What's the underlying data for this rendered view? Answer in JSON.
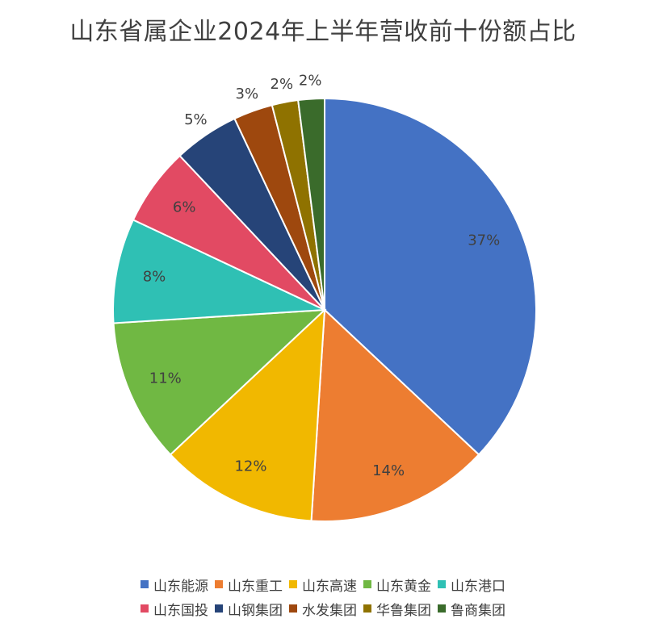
{
  "chart_data": {
    "type": "pie",
    "title": "山东省属企业2024年上半年营收前十份额占比",
    "slices": [
      {
        "name": "山东能源",
        "value": 37,
        "label": "37%",
        "color": "#4472c4"
      },
      {
        "name": "山东重工",
        "value": 14,
        "label": "14%",
        "color": "#ed7d31"
      },
      {
        "name": "山东高速",
        "value": 12,
        "label": "12%",
        "color": "#f1b800"
      },
      {
        "name": "山东黄金",
        "value": 11,
        "label": "11%",
        "color": "#70b843"
      },
      {
        "name": "山东港口",
        "value": 8,
        "label": "8%",
        "color": "#2fc0b4"
      },
      {
        "name": "山东国投",
        "value": 6,
        "label": "6%",
        "color": "#e24a63"
      },
      {
        "name": "山钢集团",
        "value": 5,
        "label": "5%",
        "color": "#264478"
      },
      {
        "name": "水发集团",
        "value": 3,
        "label": "3%",
        "color": "#9e480e"
      },
      {
        "name": "华鲁集团",
        "value": 2,
        "label": "2%",
        "color": "#8f7200"
      },
      {
        "name": "鲁商集团",
        "value": 2,
        "label": "2%",
        "color": "#3a6b2b"
      }
    ],
    "start": "12 o'clock",
    "direction": "clockwise",
    "legend_position": "bottom"
  }
}
